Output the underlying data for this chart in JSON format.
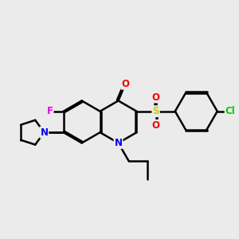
{
  "background_color": "#ebebeb",
  "bond_color": "#000000",
  "bond_width": 1.8,
  "atom_colors": {
    "N": "#0000ee",
    "O": "#ee0000",
    "F": "#ee00ee",
    "S": "#cccc00",
    "Cl": "#00cc00",
    "C": "#000000"
  },
  "font_size": 8.5,
  "figsize": [
    3.0,
    3.0
  ],
  "dpi": 100
}
